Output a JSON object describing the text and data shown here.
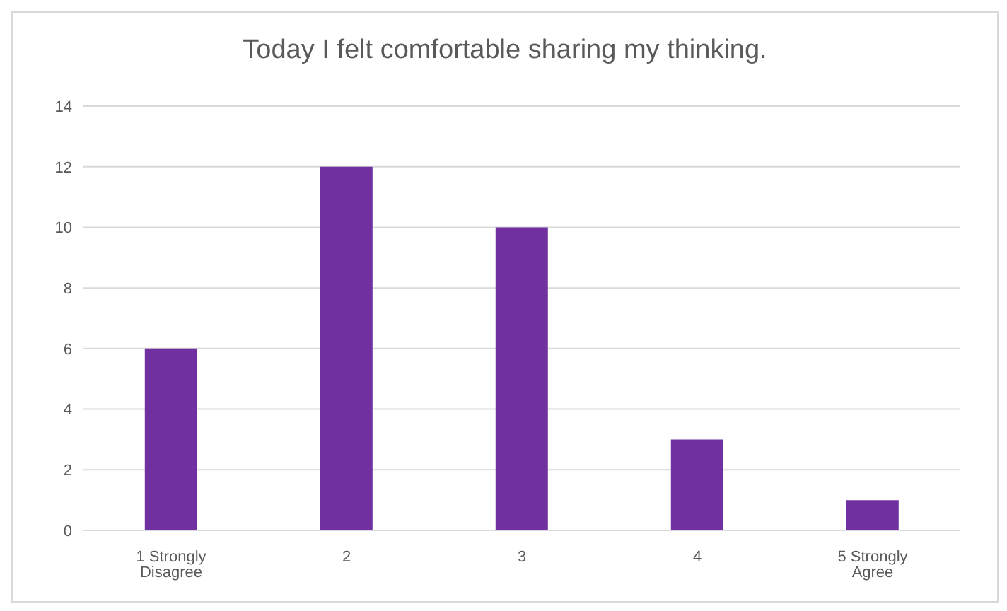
{
  "chart_data": {
    "type": "bar",
    "title": "Today I felt comfortable sharing my thinking.",
    "categories": [
      "1 Strongly Disagree",
      "2",
      "3",
      "4",
      "5 Strongly Agree"
    ],
    "values": [
      6,
      12,
      10,
      3,
      1
    ],
    "color": "#7030a0",
    "ylim": [
      0,
      14
    ],
    "yticks": [
      0,
      2,
      4,
      6,
      8,
      10,
      12,
      14
    ],
    "grid": "y",
    "legend": false
  }
}
